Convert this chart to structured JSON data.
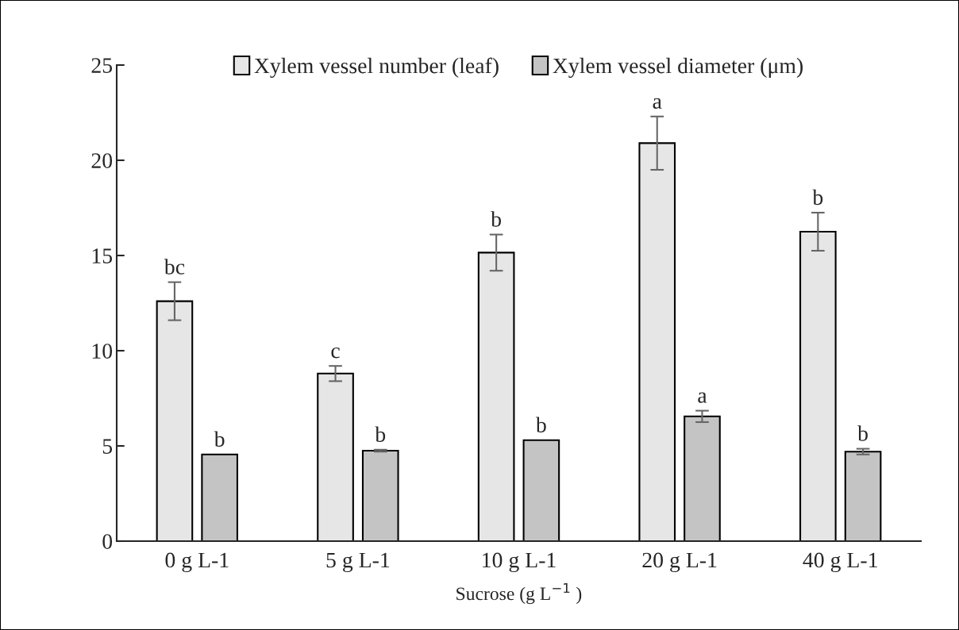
{
  "chart_data": {
    "type": "bar",
    "xlabel": "Sucrose (g L$^{−1}$ )",
    "categories": [
      "0 g L-1",
      "5 g L-1",
      "10 g L-1",
      "20 g L-1",
      "40 g L-1"
    ],
    "series": [
      {
        "name": "Xylem vessel number (leaf)",
        "color": "#e6e6e6",
        "values": [
          12.6,
          8.8,
          15.15,
          20.9,
          16.25
        ],
        "errors": [
          1.0,
          0.4,
          0.95,
          1.4,
          1.0
        ],
        "value_labels": [
          "bc",
          "c",
          "b",
          "a",
          "b"
        ]
      },
      {
        "name": "Xylem vessel diameter (μm)",
        "color": "#c4c4c4",
        "values": [
          4.55,
          4.75,
          5.3,
          6.55,
          4.7
        ],
        "errors": [
          null,
          0.05,
          null,
          0.3,
          0.15
        ],
        "value_labels": [
          "b",
          "b",
          "b",
          "a",
          "b"
        ]
      }
    ],
    "ylim": [
      0,
      25
    ],
    "yticks": [
      0,
      5,
      10,
      15,
      20,
      25
    ],
    "grid": false,
    "legend": "top"
  }
}
